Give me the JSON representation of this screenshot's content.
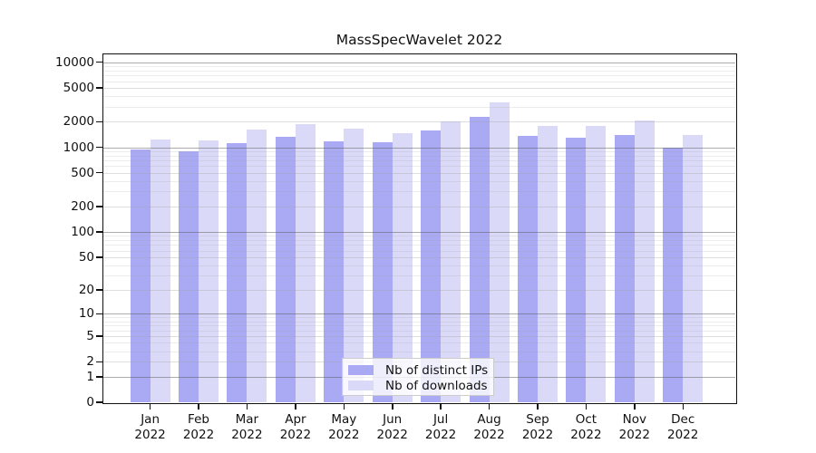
{
  "chart_data": {
    "type": "bar",
    "title": "MassSpecWavelet 2022",
    "categories": [
      "Jan 2022",
      "Feb 2022",
      "Mar 2022",
      "Apr 2022",
      "May 2022",
      "Jun 2022",
      "Jul 2022",
      "Aug 2022",
      "Sep 2022",
      "Oct 2022",
      "Nov 2022",
      "Dec 2022"
    ],
    "x_tick_months": [
      "Jan",
      "Feb",
      "Mar",
      "Apr",
      "May",
      "Jun",
      "Jul",
      "Aug",
      "Sep",
      "Oct",
      "Nov",
      "Dec"
    ],
    "x_tick_year": "2022",
    "series": [
      {
        "name": "Nb of distinct IPs",
        "color": "#a9a9f4",
        "values": [
          940,
          900,
          1120,
          1320,
          1170,
          1140,
          1560,
          2300,
          1360,
          1290,
          1390,
          1000
        ]
      },
      {
        "name": "Nb of downloads",
        "color": "#dadaf8",
        "values": [
          1230,
          1190,
          1630,
          1880,
          1650,
          1450,
          2000,
          3340,
          1780,
          1780,
          2050,
          1400
        ]
      }
    ],
    "yscale": "log10(value+1)",
    "y_ticks": [
      10000,
      5000,
      2000,
      1000,
      500,
      200,
      100,
      50,
      20,
      10,
      5,
      2,
      1,
      0
    ],
    "ylim": [
      0,
      12400
    ],
    "grid": true,
    "legend_position": "lower center inside",
    "colors": {
      "frame": "#111111",
      "decade_gridline": "#acacac",
      "minor_gridline": "#ececec",
      "legend_border": "#cccccc"
    }
  }
}
